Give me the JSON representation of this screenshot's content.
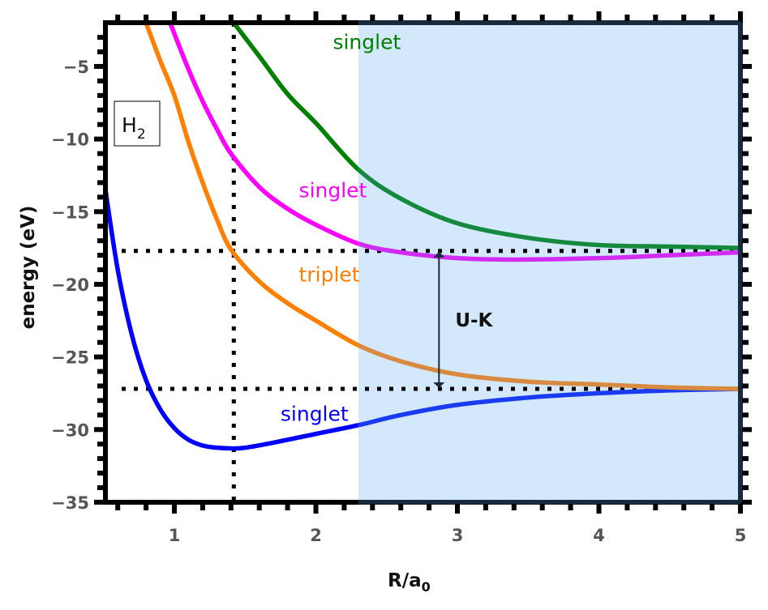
{
  "chart_data": {
    "type": "line",
    "title": "",
    "xlabel": "R/a",
    "xlabel_sub": "0",
    "ylabel": "energy (eV)",
    "xlim": [
      0.51,
      5.0
    ],
    "ylim": [
      -35,
      -2
    ],
    "x_ticks": [
      1,
      2,
      3,
      4,
      5
    ],
    "y_ticks": [
      -5,
      -10,
      -15,
      -20,
      -25,
      -30,
      -35
    ],
    "y_tick_labels": [
      "−5",
      "−10",
      "−15",
      "−20",
      "−25",
      "−30",
      "−35"
    ],
    "grid": false,
    "legend": null,
    "molecule_label": "H",
    "molecule_sub": "2",
    "shaded_region": {
      "x_from": 2.3,
      "x_to": 5.0,
      "color": "#d4e8fc"
    },
    "reference_lines": {
      "vertical_x": 1.42,
      "horizontal_y": [
        -17.7,
        -27.2
      ]
    },
    "annotation": {
      "text": "U-K",
      "x": 2.87,
      "y_from": -17.7,
      "y_to": -27.2
    },
    "series": [
      {
        "name": "singlet (ground)",
        "label": "singlet",
        "color": "#0000ff",
        "color_shaded": "#1a3cf0",
        "x": [
          0.51,
          0.6,
          0.7,
          0.8,
          0.9,
          1.0,
          1.1,
          1.2,
          1.3,
          1.4,
          1.5,
          1.7,
          2.0,
          2.3,
          2.6,
          3.0,
          3.5,
          4.0,
          4.5,
          5.0
        ],
        "y": [
          -13.3,
          -19.0,
          -23.5,
          -26.6,
          -28.6,
          -29.9,
          -30.7,
          -31.1,
          -31.25,
          -31.3,
          -31.25,
          -30.9,
          -30.3,
          -29.7,
          -29.0,
          -28.3,
          -27.8,
          -27.5,
          -27.3,
          -27.2
        ]
      },
      {
        "name": "triplet",
        "label": "triplet",
        "color": "#ff7f00",
        "color_shaded": "#d88a40",
        "x": [
          0.8,
          0.9,
          1.0,
          1.1,
          1.2,
          1.3,
          1.4,
          1.6,
          1.8,
          2.0,
          2.3,
          2.6,
          3.0,
          3.5,
          4.0,
          4.5,
          5.0
        ],
        "y": [
          -2.0,
          -4.6,
          -7.0,
          -10.2,
          -13.0,
          -15.5,
          -17.6,
          -19.8,
          -21.3,
          -22.5,
          -24.2,
          -25.3,
          -26.2,
          -26.7,
          -26.9,
          -27.1,
          -27.2
        ]
      },
      {
        "name": "singlet (excited 1)",
        "label": "singlet",
        "color": "#ff00ff",
        "color_shaded": "#d22cf0",
        "x": [
          0.97,
          1.1,
          1.2,
          1.3,
          1.4,
          1.6,
          1.8,
          2.0,
          2.3,
          2.6,
          3.0,
          3.4,
          4.0,
          4.5,
          5.0
        ],
        "y": [
          -2.0,
          -5.2,
          -7.4,
          -9.3,
          -11.0,
          -13.3,
          -14.8,
          -15.9,
          -17.2,
          -17.8,
          -18.2,
          -18.3,
          -18.2,
          -18.0,
          -17.8
        ]
      },
      {
        "name": "singlet (excited 2)",
        "label": "singlet",
        "color": "#008000",
        "color_shaded": "#158a3e",
        "x": [
          1.42,
          1.6,
          1.8,
          2.0,
          2.3,
          2.6,
          3.0,
          3.5,
          4.0,
          4.5,
          5.0
        ],
        "y": [
          -2.0,
          -4.3,
          -6.9,
          -8.9,
          -12.1,
          -14.1,
          -15.8,
          -16.8,
          -17.3,
          -17.4,
          -17.5
        ]
      }
    ],
    "curve_labels": [
      {
        "text": "singlet",
        "x": 2.12,
        "y": -3.8,
        "color": "#008000"
      },
      {
        "text": "singlet",
        "x": 1.88,
        "y": -14.0,
        "color": "#ff00ff"
      },
      {
        "text": "triplet",
        "x": 1.88,
        "y": -19.8,
        "color": "#ff7f00"
      },
      {
        "text": "singlet",
        "x": 1.75,
        "y": -29.4,
        "color": "#0000ff"
      }
    ]
  }
}
